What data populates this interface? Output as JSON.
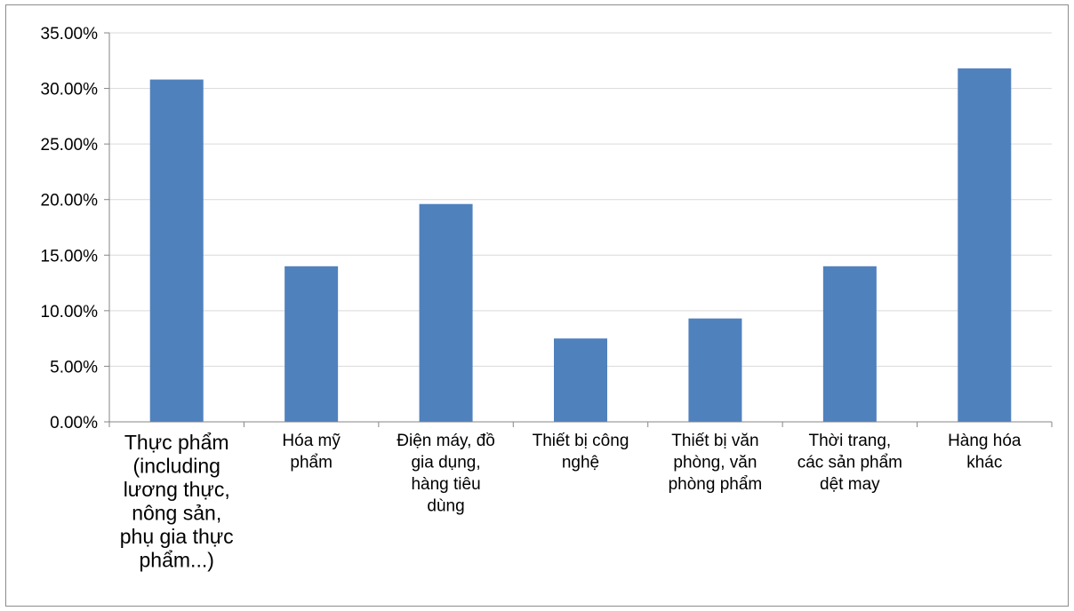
{
  "chart_data": {
    "type": "bar",
    "categories": [
      "Thực phẩm (including lương thực, nông sản, phụ gia thực phẩm...)",
      "Hóa mỹ phẩm",
      "Điện máy, đồ gia dụng, hàng tiêu dùng",
      "Thiết bị công nghệ",
      "Thiết bị văn phòng, văn phòng phẩm",
      "Thời trang, các sản phẩm dệt may",
      "Hàng hóa khác"
    ],
    "category_label_lines": [
      [
        "Thực phẩm",
        "(including",
        "lương thực,",
        "nông sản,",
        "phụ gia thực",
        "phẩm...)"
      ],
      [
        "Hóa mỹ",
        "phẩm"
      ],
      [
        "Điện máy, đồ",
        "gia dụng,",
        "hàng tiêu",
        "dùng"
      ],
      [
        "Thiết bị công",
        "nghệ"
      ],
      [
        "Thiết bị văn",
        "phòng, văn",
        "phòng phẩm"
      ],
      [
        "Thời trang,",
        "các sản phẩm",
        "dệt may"
      ],
      [
        "Hàng hóa",
        "khác"
      ]
    ],
    "values": [
      30.8,
      14.0,
      19.6,
      7.5,
      9.3,
      14.0,
      31.8
    ],
    "ylim": [
      0,
      35
    ],
    "yticks": [
      "0.00%",
      "5.00%",
      "10.00%",
      "15.00%",
      "20.00%",
      "25.00%",
      "30.00%",
      "35.00%"
    ],
    "title": "",
    "xlabel": "",
    "ylabel": "",
    "grid": true,
    "legend": "none",
    "bar_color": "#4f81bd",
    "grid_color": "#d9d9d9",
    "axis_color": "#868686"
  }
}
